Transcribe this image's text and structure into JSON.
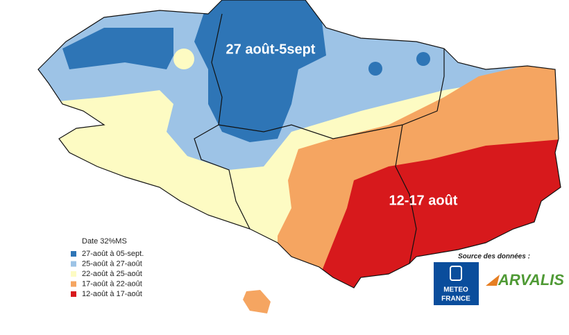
{
  "map": {
    "legend": {
      "title": "Date 32%MS",
      "items": [
        {
          "label": "27-août à 05-sept.",
          "color": "#2e75b6"
        },
        {
          "label": "25-août à 27-août",
          "color": "#9dc3e6"
        },
        {
          "label": "22-août à 25-août",
          "color": "#fdfbc3"
        },
        {
          "label": "17-août à 22-août",
          "color": "#f5a561"
        },
        {
          "label": "12-août à 17-août",
          "color": "#d7191c"
        }
      ]
    },
    "annotations": [
      {
        "text": "27 août-5sept"
      },
      {
        "text": "12-17 août"
      }
    ],
    "source": {
      "label": "Source des données :",
      "logos": [
        "METEO",
        "FRANCE",
        "ARVALIS"
      ]
    }
  }
}
